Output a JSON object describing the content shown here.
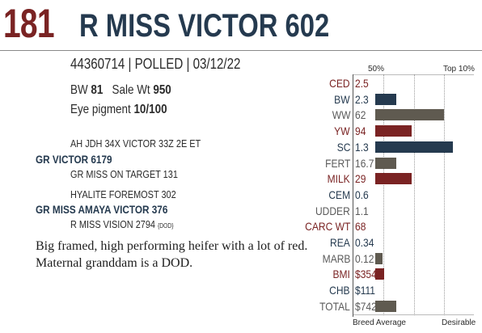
{
  "lot": {
    "number": "181",
    "name": "R MISS VICTOR 602"
  },
  "registration_line": "44360714 | POLLED | 03/12/22",
  "performance": {
    "bw_label": "BW",
    "bw_value": "81",
    "sale_wt_label": "Sale Wt",
    "sale_wt_value": "950"
  },
  "eye_pigment": {
    "label": "Eye pigment",
    "value": "10/100"
  },
  "pedigree": {
    "sire_sire": "AH JDH 34X VICTOR 33Z 2E ET",
    "sire": "GR VICTOR 6179",
    "sire_dam": "GR MISS ON TARGET 131",
    "dam_sire": "HYALITE FOREMOST 302",
    "dam": "GR MISS AMAYA VICTOR 376",
    "dam_dam": "R MISS VISION 2794",
    "dam_dam_tag": "{DOD}"
  },
  "description": "Big framed, high performing heifer with a lot of red. Maternal granddam is a DOD.",
  "chart_headers": {
    "mid": "50%",
    "top": "Top 10%",
    "footer_left": "Breed Average",
    "footer_right": "Desirable"
  },
  "colors": {
    "red": "#7a2323",
    "navy": "#253a4f",
    "gray": "#5a5a5a",
    "bar_red": "#7a2323",
    "bar_navy": "#253a4f",
    "bar_olive": "#5f5a50"
  },
  "chart_data": {
    "type": "bar",
    "categories": [
      "CED",
      "BW",
      "WW",
      "YW",
      "SC",
      "FERT",
      "MILK",
      "CEM",
      "UDDER",
      "CARC WT",
      "REA",
      "MARB",
      "BMI",
      "CHB",
      "TOTAL"
    ],
    "values": [
      "2.5",
      "2.3",
      "62",
      "94",
      "1.3",
      "16.7",
      "29",
      "0.6",
      "1.1",
      "68",
      "0.34",
      "0.12",
      "$354",
      "$111",
      "$742"
    ],
    "bar_fraction": [
      0,
      0.17,
      0.57,
      0.3,
      0.64,
      0.17,
      0.3,
      0,
      0,
      0,
      0,
      0.06,
      0.07,
      0,
      0.17
    ],
    "label_colors": [
      "red",
      "navy",
      "gray",
      "red",
      "navy",
      "gray",
      "red",
      "navy",
      "gray",
      "red",
      "navy",
      "gray",
      "red",
      "navy",
      "gray"
    ]
  }
}
